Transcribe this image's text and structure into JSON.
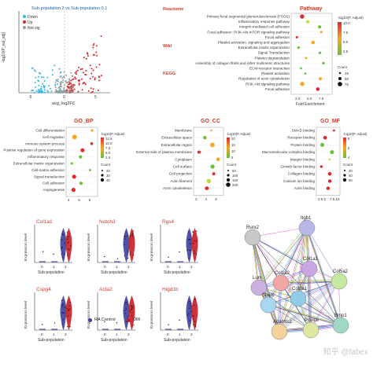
{
  "volcano": {
    "title": "Sub-population 2 vs Sub-population 0.1",
    "legend": [
      {
        "label": "Down",
        "color": "#33b5e5"
      },
      {
        "label": "Up",
        "color": "#d62728"
      },
      {
        "label": "Not sig",
        "color": "#9a9a9a"
      }
    ],
    "xlabel": "avg_log2FC",
    "ylabel": "-log10(P_val_adj)",
    "xticks": [
      "-5",
      "0",
      "5"
    ],
    "yticks": [
      "0",
      "100",
      "200",
      "300"
    ]
  },
  "pathway": {
    "title": "Pathway",
    "groups": [
      {
        "name": "Reactome",
        "terms": [
          "Primary focal segmental glomerulosclerosis (FSGS)",
          "Inflammatory response pathway",
          "Integrin-mediated cell adhesion",
          "Focal adhesion: PI3K-Akt-mTOR signaling pathway"
        ]
      },
      {
        "name": "Wiki",
        "terms": [
          "Focal adhesion",
          "Platelet activation, signaling and aggregation",
          "Extracellular matrix organization",
          "Signal Transduction",
          "Platelet degranulation"
        ]
      },
      {
        "name": "KEGG",
        "terms": [
          "Assembly of collagen fibrils and other multimeric structures",
          "ECM-receptor interaction",
          "Platelet activation",
          "Regulation of actin cytoskeleton",
          "PI3K-Akt signaling pathway",
          "Focal adhesion"
        ]
      }
    ],
    "xlabel": "Fold Enrichment",
    "xticks": [
      "2.5",
      "5.0",
      "7.5"
    ],
    "colorbar_title": "-log10(P. Adjust)",
    "colorbar_ticks": [
      "10.0",
      "7.5",
      "5.0",
      "2.5"
    ],
    "size_title": "Count",
    "size_ticks": [
      "25",
      "50",
      "75"
    ]
  },
  "go_bp": {
    "title": "GO_BP",
    "terms": [
      "Cell differentiation",
      "Cell migration",
      "Immune system process",
      "Positive regulation of gene expression",
      "Inflammatory response",
      "Extracellular matrix organization",
      "Cell-matrix adhesion",
      "Signal transduction",
      "Cell adhesion",
      "Angiogenesis"
    ],
    "xlabel": "Fold Enrichment",
    "xticks": [
      "4",
      "6",
      "8"
    ],
    "colorbar_title": "-log10(P. Adjust)",
    "colorbar_ticks": [
      "12.5",
      "10.0",
      "7.5",
      "5.0",
      "2.5"
    ],
    "size_title": "Count",
    "size_ticks": [
      "20",
      "30",
      "40"
    ]
  },
  "go_cc": {
    "title": "GO_CC",
    "terms": [
      "Membrane",
      "Extracellular space",
      "Extracellular region",
      "External side of plasma membrane",
      "Cytoplasm",
      "Cell surface",
      "Cell projection",
      "Actin filament",
      "Actin cytoskeleton"
    ],
    "xlabel": "Fold Enrichment",
    "xticks": [
      "2",
      "4",
      "6"
    ],
    "colorbar_title": "-log10(P. Adjust)",
    "colorbar_ticks": [
      "20",
      "15",
      "10",
      "5"
    ],
    "size_title": "Count",
    "size_ticks": [
      "50",
      "100",
      "150",
      "200"
    ]
  },
  "go_mf": {
    "title": "GO_MF",
    "terms": [
      "SMAD binding",
      "Receptor binding",
      "Protein binding",
      "Macromolecular complex binding",
      "Integrin binding",
      "Growth factor binding",
      "Collagen binding",
      "Calcium ion binding",
      "Actin binding"
    ],
    "xlabel": "Fold Enrichment",
    "xticks": [
      "2.5",
      "5",
      "7.5",
      "10"
    ],
    "colorbar_title": "-log10(P. Adjust)",
    "colorbar_ticks": [
      "8",
      "6",
      "4"
    ],
    "size_title": "Count",
    "size_ticks": [
      "20",
      "40",
      "60"
    ]
  },
  "violins": {
    "genes": [
      "Col1a1",
      "Notch3",
      "Rgs4",
      "Cspg4",
      "Acta2",
      "Higd1b"
    ],
    "ylabel": "Expression level",
    "xlabel": "Sub-population",
    "xticks": [
      "0",
      "1",
      "2"
    ],
    "legend": [
      {
        "label": "RA Control",
        "color": "#3b3f9e"
      },
      {
        "label": "OIR",
        "color": "#c81d25"
      }
    ]
  },
  "network": {
    "nodes": [
      "Itgb1",
      "Rurx2",
      "Lum",
      "Col1a1",
      "Col1a2",
      "Col5a2",
      "Sparc",
      "Col3a1",
      "Adamts2",
      "Pcolce",
      "Bmp1"
    ]
  },
  "watermark": "知乎 @fabex",
  "colors": {
    "accent_red": "#d43b2a",
    "up": "#d62728",
    "down": "#33b5e5",
    "notsig": "#9a9a9a",
    "grad_high": "#e8262a",
    "grad_mid": "#f6a623",
    "grad_low": "#63c23a"
  }
}
